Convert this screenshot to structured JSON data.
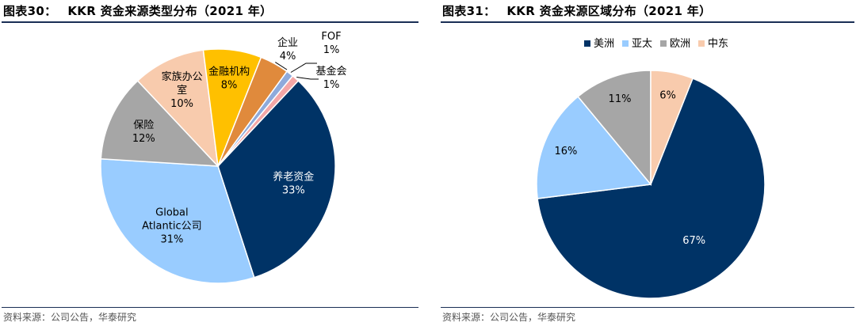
{
  "source_label": "资料来源：公司公告，华泰研究",
  "chart_data": [
    {
      "type": "pie",
      "fig_num": "图表30：",
      "title": "KKR 资金来源类型分布（2021 年）",
      "source": "资料来源：公司公告，华泰研究",
      "legend": "none",
      "slices": [
        {
          "label": "养老资金",
          "value": 33,
          "value_label": "33%",
          "color": "#003366"
        },
        {
          "label": "Global Atlantic公司",
          "label_lines": [
            "Global",
            "Atlantic公司"
          ],
          "value": 31,
          "value_label": "31%",
          "color": "#99ccff"
        },
        {
          "label": "保险",
          "value": 12,
          "value_label": "12%",
          "color": "#a6a6a6"
        },
        {
          "label": "家族办公室",
          "label_lines": [
            "家族办公",
            "室"
          ],
          "value": 10,
          "value_label": "10%",
          "color": "#f8cbad"
        },
        {
          "label": "金融机构",
          "value": 8,
          "value_label": "8%",
          "color": "#ffc000"
        },
        {
          "label": "企业",
          "value": 4,
          "value_label": "4%",
          "color": "#e08a3c"
        },
        {
          "label": "FOF",
          "value": 1,
          "value_label": "1%",
          "color": "#8eaadb"
        },
        {
          "label": "基金会",
          "value": 1,
          "value_label": "1%",
          "color": "#f4a6a6"
        }
      ]
    },
    {
      "type": "pie",
      "fig_num": "图表31：",
      "title": "KKR 资金来源区域分布（2021 年）",
      "source": "资料来源：公司公告，华泰研究",
      "legend": "top",
      "slices": [
        {
          "label": "美洲",
          "value": 67,
          "value_label": "67%",
          "color": "#003366"
        },
        {
          "label": "亚太",
          "value": 16,
          "value_label": "16%",
          "color": "#99ccff"
        },
        {
          "label": "欧洲",
          "value": 11,
          "value_label": "11%",
          "color": "#a6a6a6"
        },
        {
          "label": "中东",
          "value": 6,
          "value_label": "6%",
          "color": "#f8cbad"
        }
      ]
    }
  ]
}
